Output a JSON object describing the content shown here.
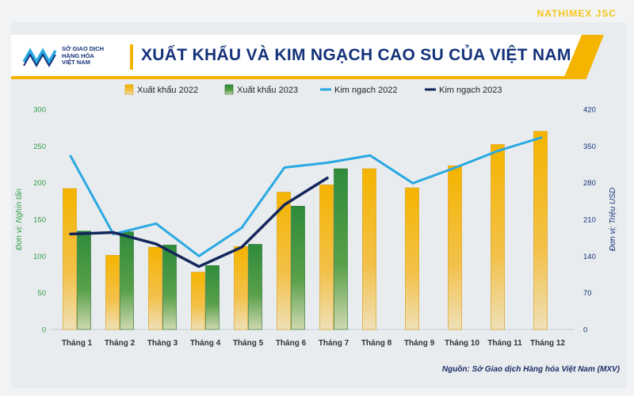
{
  "brand": "NATHIMEX JSC",
  "logo_text": [
    "SỞ GIAO DỊCH",
    "HÀNG HÓA",
    "VIỆT NAM"
  ],
  "source": "Nguồn: Sở Giao dịch Hàng hóa Việt Nam (MXV)",
  "colors": {
    "bar2022": "#f5b400",
    "bar2023": "#2e8b3a",
    "line2022": "#29a9e1",
    "line2023": "#14275c",
    "left_axis": "#2e9e45",
    "right_axis": "#14327a"
  },
  "chart_data": {
    "type": "bar",
    "title": "XUẤT KHẨU VÀ KIM NGẠCH CAO SU CỦA VIỆT NAM",
    "categories": [
      "Tháng 1",
      "Tháng 2",
      "Tháng 3",
      "Tháng 4",
      "Tháng 5",
      "Tháng 6",
      "Tháng 7",
      "Tháng 8",
      "Tháng 9",
      "Tháng 10",
      "Tháng 11",
      "Tháng 12"
    ],
    "ylabel_left": "Đơn vị: Nghìn tấn",
    "ylabel_right": "Đơn vị: Triệu USD",
    "ylim_left": [
      0,
      300
    ],
    "ylim_right": [
      0,
      420
    ],
    "yticks_left": [
      0,
      50,
      100,
      150,
      200,
      250,
      300
    ],
    "yticks_right": [
      0,
      70,
      140,
      210,
      280,
      350,
      420
    ],
    "legend_position": "top",
    "series": [
      {
        "name": "Xuất khẩu 2022",
        "kind": "bar",
        "axis": "left",
        "values": [
          192,
          101,
          112,
          78,
          113,
          187,
          197,
          219,
          193,
          223,
          252,
          270
        ]
      },
      {
        "name": "Xuất khẩu 2023",
        "kind": "bar",
        "axis": "left",
        "values": [
          134,
          133,
          115,
          87,
          116,
          168,
          219,
          null,
          null,
          null,
          null,
          null
        ]
      },
      {
        "name": "Kim ngạch 2022",
        "kind": "line",
        "axis": "right",
        "values": [
          331,
          182,
          202,
          140,
          194,
          309,
          318,
          332,
          279,
          309,
          341,
          366
        ]
      },
      {
        "name": "Kim ngạch 2023",
        "kind": "line",
        "axis": "right",
        "values": [
          182,
          185,
          163,
          120,
          157,
          238,
          289,
          null,
          null,
          null,
          null,
          null
        ]
      }
    ]
  }
}
